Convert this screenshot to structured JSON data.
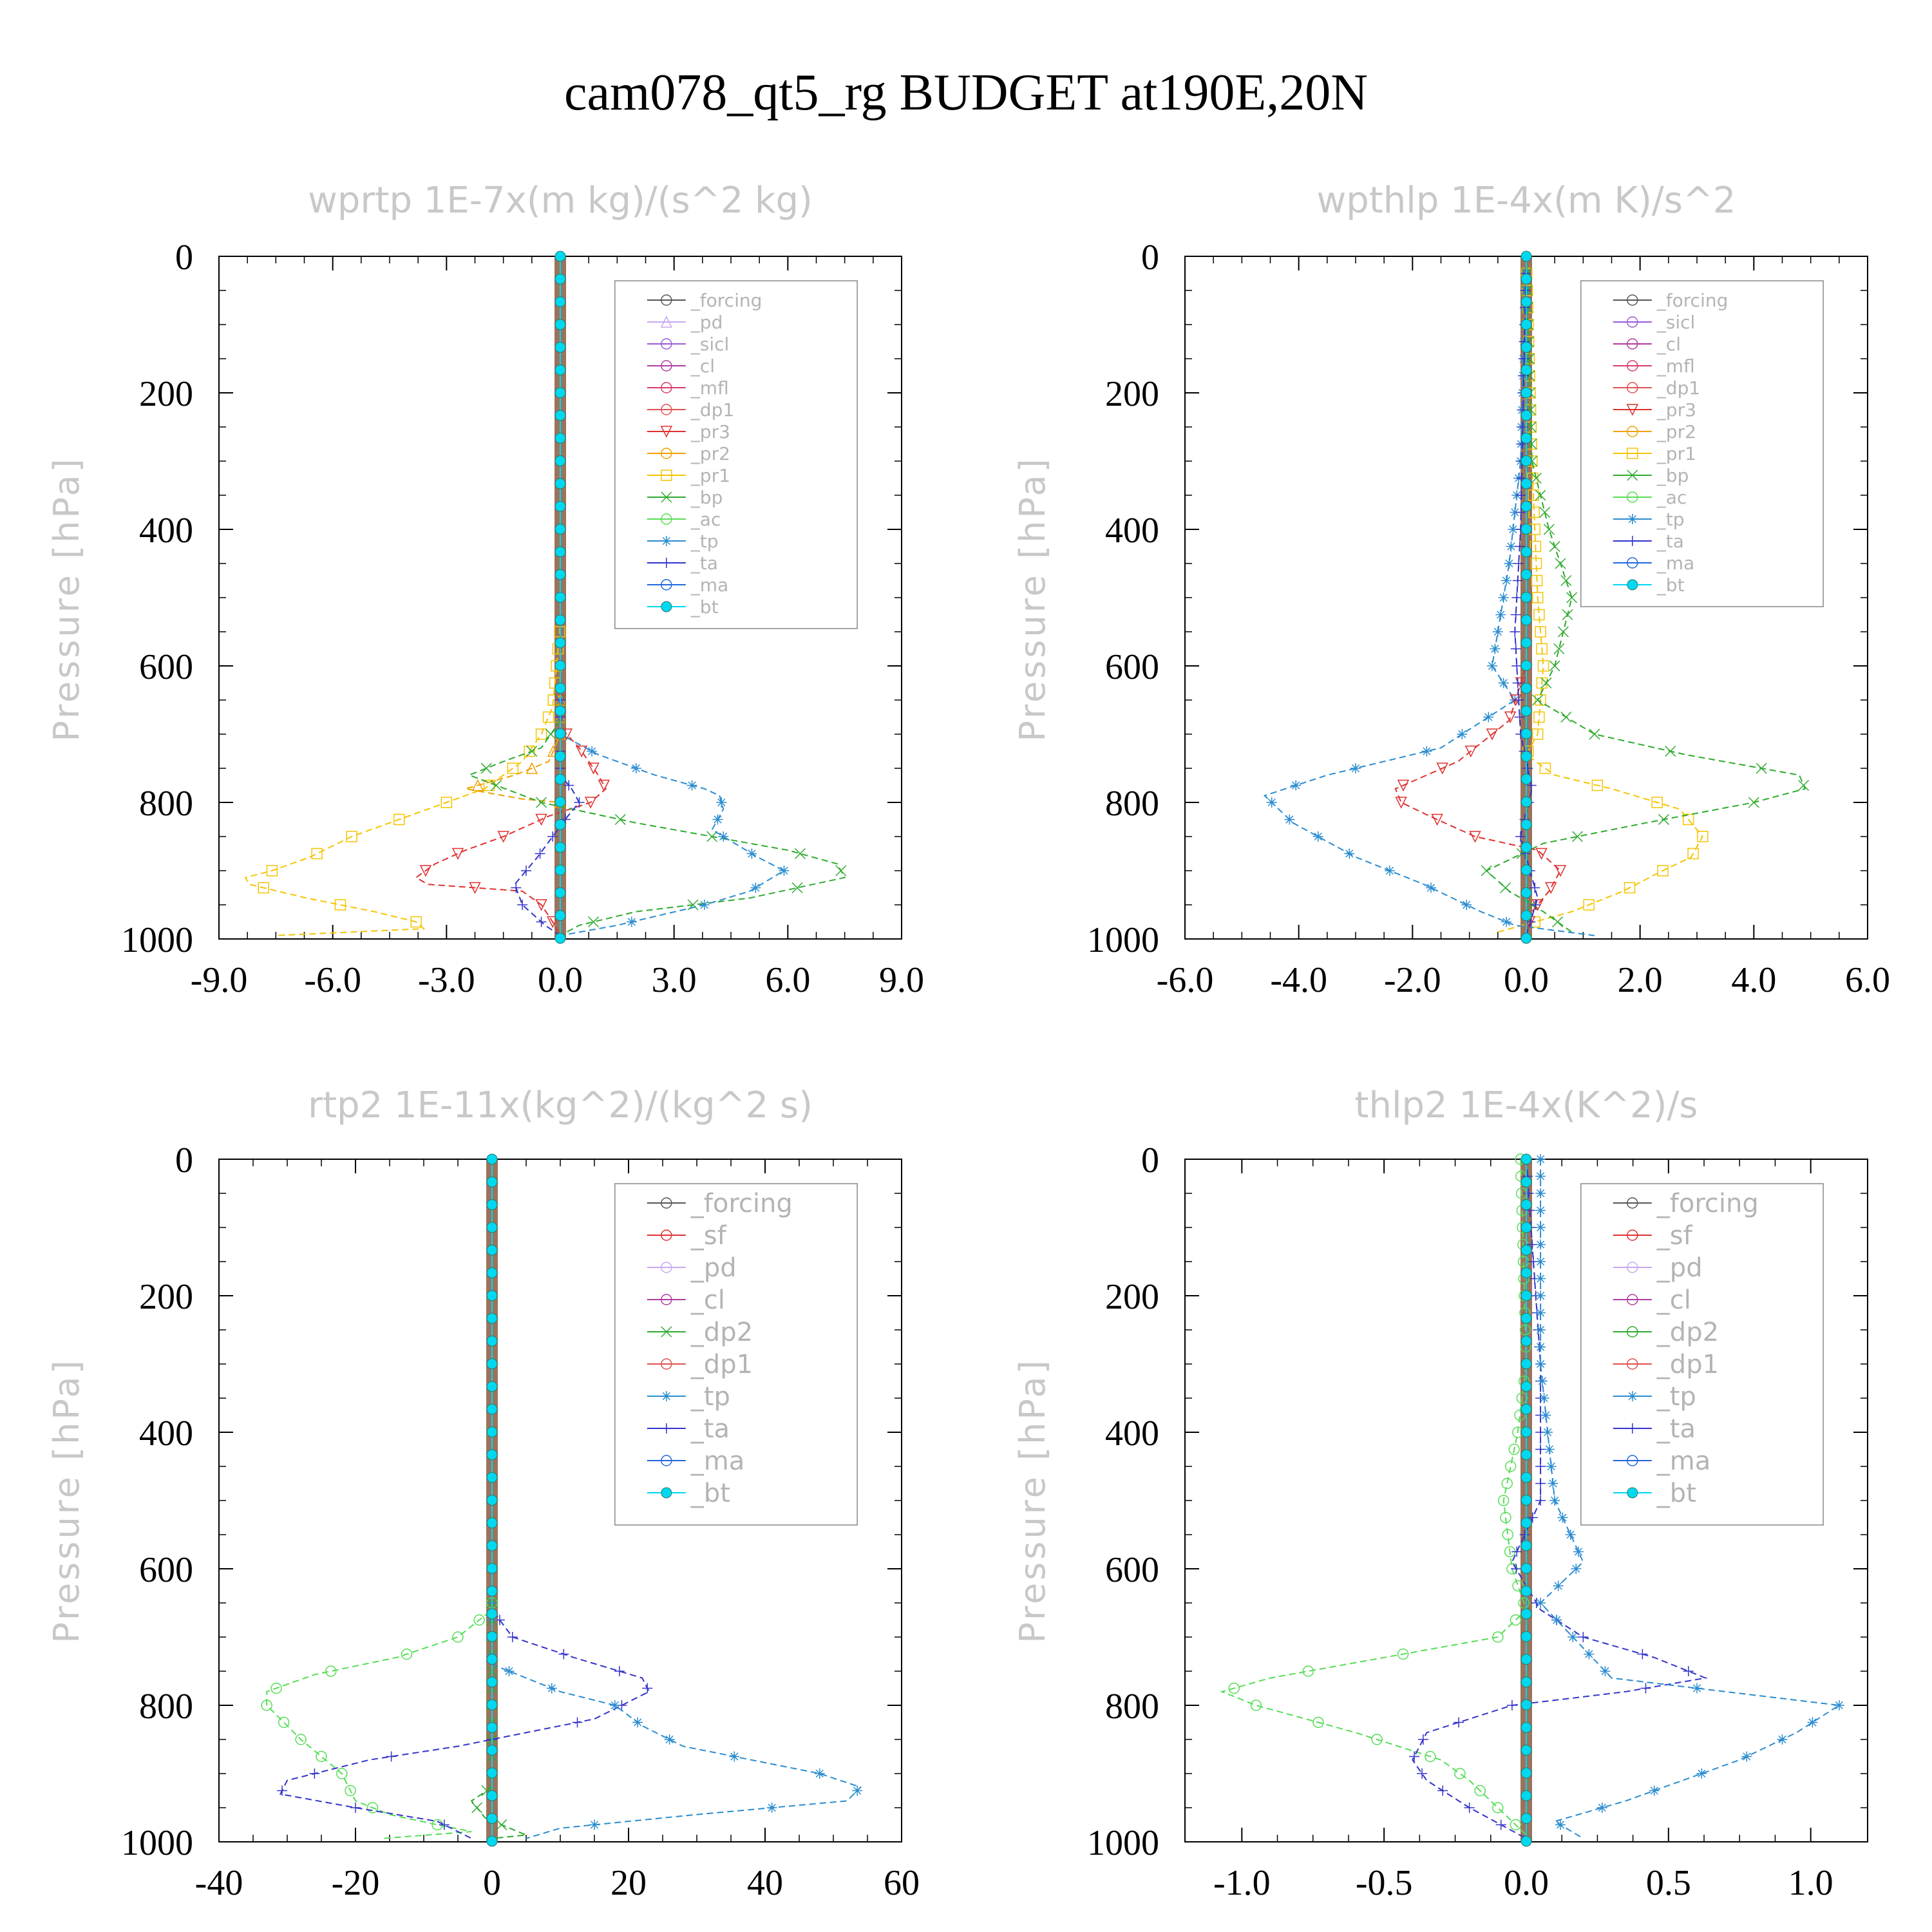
{
  "figure": {
    "title": "cam078_qt5_rg  BUDGET at190E,20N"
  },
  "chart_data": [
    {
      "type": "line",
      "title": "wprtp  1E-7x(m kg)/(s^2 kg)",
      "ylabel": "Pressure [hPa]",
      "xlim": [
        -9,
        9
      ],
      "ylim": [
        1000,
        0
      ],
      "xticks": [
        "-9.0",
        "-6.0",
        "-3.0",
        "0.0",
        "3.0",
        "6.0",
        "9.0"
      ],
      "xtick_values": [
        -9,
        -6,
        -3,
        0,
        3,
        6,
        9
      ],
      "yticks": [
        "0",
        "200",
        "400",
        "600",
        "800",
        "1000"
      ],
      "ytick_values": [
        0,
        200,
        400,
        600,
        800,
        1000
      ],
      "legend_position": "top-right",
      "legend": [
        "_forcing",
        "_pd",
        "_sicl",
        "_cl",
        "_mfl",
        "_dp1",
        "_pr3",
        "_pr2",
        "_pr1",
        "_bp",
        "_ac",
        "_tp",
        "_ta",
        "_ma",
        "_bt"
      ],
      "series": [
        {
          "name": "_pr1",
          "color": "#f5c400",
          "marker": "square",
          "x": [
            0,
            0,
            -0.1,
            -0.2,
            -0.5,
            -1.0,
            -2.0,
            -3.0,
            -4.0,
            -5.5,
            -6.6,
            -7.6,
            -8.3,
            -8.2,
            -6.7,
            -4.9,
            -3.8,
            -3.6,
            -7.5
          ],
          "y": [
            0,
            540,
            600,
            660,
            700,
            740,
            780,
            800,
            820,
            850,
            880,
            900,
            910,
            920,
            940,
            960,
            975,
            985,
            995
          ]
        },
        {
          "name": "_pd",
          "color": "#f0a000",
          "marker": "triangle",
          "x": [
            0,
            0,
            -0.3,
            -1.2,
            -2.5,
            -1.0,
            0
          ],
          "y": [
            0,
            700,
            740,
            760,
            780,
            795,
            800
          ]
        },
        {
          "name": "_pr3",
          "color": "#e03030",
          "marker": "triangle-down",
          "x": [
            0,
            0,
            0.5,
            1.0,
            1.2,
            0.8,
            -0.3,
            -1.5,
            -2.5,
            -3.3,
            -3.8,
            -3.5,
            -1.0,
            -0.5,
            -0.2,
            0
          ],
          "y": [
            0,
            690,
            720,
            760,
            780,
            800,
            820,
            850,
            870,
            890,
            910,
            920,
            930,
            950,
            975,
            995
          ]
        },
        {
          "name": "_bp",
          "color": "#2eaa2e",
          "marker": "x",
          "x": [
            0,
            0,
            -0.5,
            -1.5,
            -2.4,
            -0.5,
            2.0,
            4.0,
            6.0,
            7.3,
            7.5,
            5.0,
            2.0,
            0.5,
            0
          ],
          "y": [
            0,
            680,
            720,
            740,
            760,
            800,
            830,
            850,
            870,
            890,
            910,
            940,
            960,
            980,
            995
          ]
        },
        {
          "name": "_tp",
          "color": "#2a8ccf",
          "marker": "asterisk",
          "x": [
            0,
            0,
            1.0,
            2.5,
            3.8,
            4.2,
            4.3,
            4.0,
            5.2,
            5.9,
            5.0,
            3.8,
            1.5,
            0
          ],
          "y": [
            0,
            700,
            730,
            760,
            780,
            790,
            810,
            840,
            880,
            900,
            930,
            950,
            980,
            995
          ]
        },
        {
          "name": "_ta",
          "color": "#3333cc",
          "marker": "plus",
          "x": [
            0,
            0,
            0.3,
            0.5,
            0.2,
            -0.2,
            -0.6,
            -0.9,
            -1.2,
            -1.0,
            -0.4,
            0
          ],
          "y": [
            0,
            760,
            780,
            800,
            820,
            850,
            880,
            900,
            920,
            950,
            980,
            995
          ]
        },
        {
          "name": "_bt",
          "color": "#00d8f0",
          "marker": "dot",
          "x": [
            0,
            0
          ],
          "y": [
            0,
            1000
          ]
        }
      ]
    },
    {
      "type": "line",
      "title": "wpthlp  1E-4x(m K)/s^2",
      "ylabel": "Pressure [hPa]",
      "xlim": [
        -6,
        6
      ],
      "ylim": [
        1000,
        0
      ],
      "xticks": [
        "-6.0",
        "-4.0",
        "-2.0",
        "0.0",
        "2.0",
        "4.0",
        "6.0"
      ],
      "xtick_values": [
        -6,
        -4,
        -2,
        0,
        2,
        4,
        6
      ],
      "yticks": [
        "0",
        "200",
        "400",
        "600",
        "800",
        "1000"
      ],
      "ytick_values": [
        0,
        200,
        400,
        600,
        800,
        1000
      ],
      "legend_position": "top-right",
      "legend": [
        "_forcing",
        "_sicl",
        "_cl",
        "_mfl",
        "_dp1",
        "_pr3",
        "_pr2",
        "_pr1",
        "_bp",
        "_ac",
        "_tp",
        "_ta",
        "_ma",
        "_bt"
      ],
      "series": [
        {
          "name": "_pr1",
          "color": "#f5c400",
          "marker": "square",
          "x": [
            0,
            0.1,
            0.2,
            0.3,
            0.2,
            0,
            0.5,
            1.5,
            2.7,
            3.1,
            2.9,
            2.4,
            1.7,
            0.8,
            -0.5
          ],
          "y": [
            0,
            300,
            500,
            600,
            700,
            730,
            760,
            780,
            810,
            850,
            880,
            900,
            930,
            960,
            990
          ]
        },
        {
          "name": "_bp",
          "color": "#2eaa2e",
          "marker": "x",
          "x": [
            0,
            0.1,
            0.4,
            0.8,
            0.5,
            0.2,
            1.2,
            2.8,
            4.8,
            4.9,
            4.0,
            2.1,
            0.3,
            -0.7,
            -0.3,
            0.3,
            0.8
          ],
          "y": [
            0,
            300,
            400,
            500,
            600,
            650,
            700,
            730,
            760,
            780,
            800,
            830,
            860,
            900,
            930,
            960,
            990
          ]
        },
        {
          "name": "_tp",
          "color": "#2a8ccf",
          "marker": "asterisk",
          "x": [
            0,
            -0.1,
            -0.3,
            -0.5,
            -0.6,
            -0.2,
            -1.5,
            -3.5,
            -4.6,
            -4.1,
            -3.0,
            -1.8,
            -0.8,
            -0.2,
            1.2
          ],
          "y": [
            0,
            300,
            450,
            550,
            600,
            650,
            720,
            760,
            790,
            830,
            880,
            920,
            960,
            980,
            995
          ]
        },
        {
          "name": "_pr3",
          "color": "#e03030",
          "marker": "triangle-down",
          "x": [
            0,
            0,
            -0.3,
            -1.2,
            -2.3,
            -2.2,
            -1.7,
            -0.9,
            0.2,
            0.6,
            0.4,
            0.1,
            0
          ],
          "y": [
            0,
            600,
            680,
            740,
            780,
            800,
            820,
            850,
            870,
            900,
            930,
            960,
            995
          ]
        },
        {
          "name": "_ta",
          "color": "#3333cc",
          "marker": "plus",
          "x": [
            0,
            -0.1,
            -0.2,
            -0.1,
            0.1,
            -0.1,
            0.2,
            0
          ],
          "y": [
            0,
            400,
            550,
            700,
            780,
            850,
            940,
            995
          ]
        },
        {
          "name": "_bt",
          "color": "#00d8f0",
          "marker": "dot",
          "x": [
            0,
            0
          ],
          "y": [
            0,
            1000
          ]
        }
      ]
    },
    {
      "type": "line",
      "title": "rtp2  1E-11x(kg^2)/(kg^2 s)",
      "ylabel": "Pressure [hPa]",
      "xlim": [
        -40,
        60
      ],
      "ylim": [
        1000,
        0
      ],
      "xticks": [
        "-40",
        "-20",
        "0",
        "20",
        "40",
        "60"
      ],
      "xtick_values": [
        -40,
        -20,
        0,
        20,
        40,
        60
      ],
      "yticks": [
        "0",
        "200",
        "400",
        "600",
        "800",
        "1000"
      ],
      "ytick_values": [
        0,
        200,
        400,
        600,
        800,
        1000
      ],
      "legend_position": "top-right",
      "legend": [
        "_forcing",
        "_sf",
        "_pd",
        "_cl",
        "_dp2",
        "_dp1",
        "_tp",
        "_ta",
        "_ma",
        "_bt"
      ],
      "series": [
        {
          "name": "_dp1",
          "color": "#55dd55",
          "marker": "circle",
          "x": [
            0,
            0,
            -5,
            -14,
            -26,
            -33,
            -33,
            -28,
            -22,
            -20,
            -15,
            -8,
            -3,
            -16
          ],
          "y": [
            0,
            660,
            700,
            730,
            755,
            780,
            800,
            850,
            900,
            940,
            960,
            975,
            985,
            995
          ]
        },
        {
          "name": "_ta",
          "color": "#3333cc",
          "marker": "plus",
          "x": [
            0,
            0,
            3,
            12,
            22,
            23,
            15,
            5,
            -5,
            -18,
            -30,
            -31,
            -20,
            -8,
            -3
          ],
          "y": [
            0,
            660,
            700,
            730,
            760,
            780,
            820,
            840,
            860,
            880,
            910,
            930,
            950,
            970,
            995
          ]
        },
        {
          "name": "_tp",
          "color": "#2a8ccf",
          "marker": "asterisk",
          "x": [
            0,
            0,
            5,
            10,
            18,
            22,
            28,
            38,
            48,
            54,
            52,
            30,
            10,
            5
          ],
          "y": [
            0,
            740,
            760,
            780,
            800,
            830,
            860,
            880,
            900,
            920,
            940,
            960,
            980,
            995
          ]
        },
        {
          "name": "_dp2",
          "color": "#2eaa2e",
          "marker": "x",
          "x": [
            0,
            0,
            -3,
            -1,
            5,
            0
          ],
          "y": [
            0,
            920,
            940,
            965,
            990,
            995
          ]
        },
        {
          "name": "_bt",
          "color": "#00d8f0",
          "marker": "dot",
          "x": [
            0,
            0
          ],
          "y": [
            0,
            1000
          ]
        }
      ]
    },
    {
      "type": "line",
      "title": "thlp2  1E-4x(K^2)/s",
      "ylabel": "Pressure [hPa]",
      "xlim": [
        -1.2,
        1.2
      ],
      "ylim": [
        1000,
        0
      ],
      "xticks": [
        "-1.0",
        "-0.5",
        "0.0",
        "0.5",
        "1.0"
      ],
      "xtick_values": [
        -1.0,
        -0.5,
        0.0,
        0.5,
        1.0
      ],
      "yticks": [
        "0",
        "200",
        "400",
        "600",
        "800",
        "1000"
      ],
      "ytick_values": [
        0,
        200,
        400,
        600,
        800,
        1000
      ],
      "legend_position": "top-right",
      "legend": [
        "_forcing",
        "_sf",
        "_pd",
        "_cl",
        "_dp2",
        "_dp1",
        "_tp",
        "_ta",
        "_ma",
        "_bt"
      ],
      "series": [
        {
          "name": "_dp1",
          "color": "#55dd55",
          "marker": "circle",
          "x": [
            -0.02,
            0,
            -0.03,
            -0.08,
            -0.05,
            0,
            -0.1,
            -0.5,
            -0.9,
            -1.07,
            -0.95,
            -0.6,
            -0.3,
            -0.2,
            -0.1,
            0
          ],
          "y": [
            0,
            300,
            400,
            500,
            600,
            660,
            700,
            730,
            760,
            780,
            800,
            840,
            880,
            910,
            950,
            990
          ]
        },
        {
          "name": "_ta",
          "color": "#3333cc",
          "marker": "plus",
          "x": [
            0,
            0.05,
            0.05,
            -0.05,
            0.05,
            0.2,
            0.45,
            0.63,
            0.35,
            -0.05,
            -0.35,
            -0.4,
            -0.35,
            -0.2,
            0
          ],
          "y": [
            0,
            300,
            500,
            590,
            660,
            700,
            730,
            760,
            780,
            800,
            840,
            880,
            910,
            950,
            995
          ]
        },
        {
          "name": "_tp",
          "color": "#2a8ccf",
          "marker": "asterisk",
          "x": [
            0.05,
            0.05,
            0.1,
            0.2,
            0.05,
            0.3,
            0.7,
            1.1,
            0.95,
            0.75,
            0.55,
            0.35,
            0.1,
            0.2
          ],
          "y": [
            0,
            300,
            500,
            590,
            650,
            760,
            780,
            800,
            840,
            880,
            910,
            940,
            970,
            995
          ]
        },
        {
          "name": "_bt",
          "color": "#00d8f0",
          "marker": "dot",
          "x": [
            0,
            0
          ],
          "y": [
            0,
            1000
          ]
        }
      ]
    }
  ]
}
